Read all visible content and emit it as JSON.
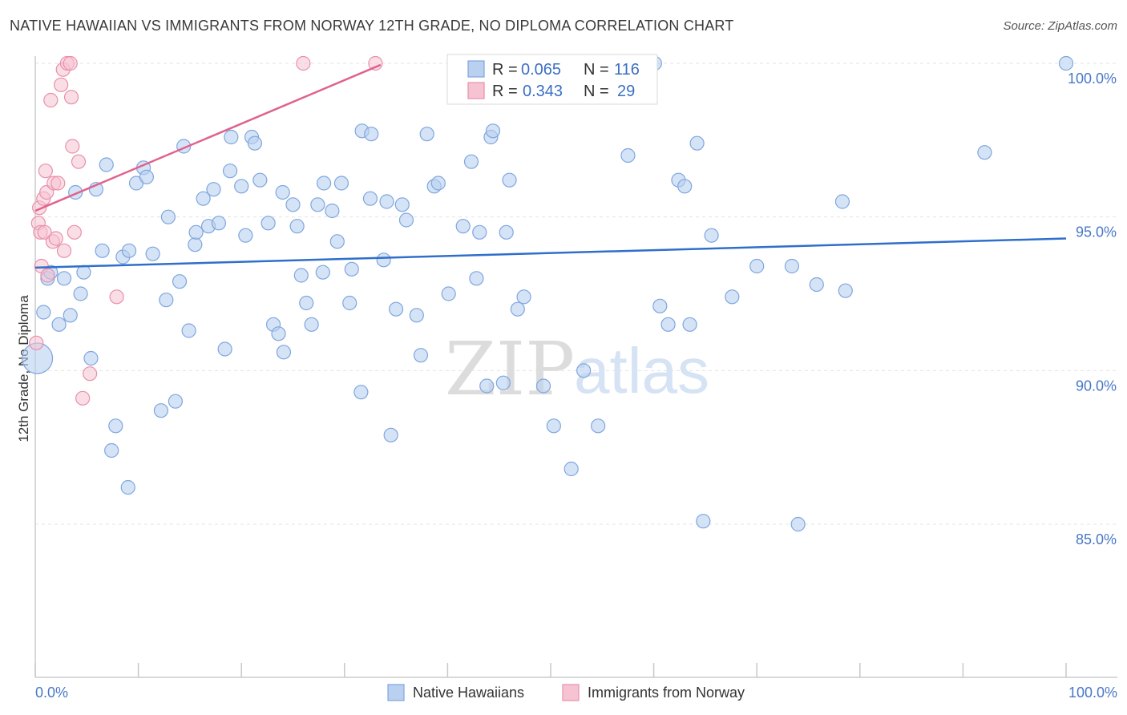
{
  "header": {
    "title": "NATIVE HAWAIIAN VS IMMIGRANTS FROM NORWAY 12TH GRADE, NO DIPLOMA CORRELATION CHART",
    "source": "Source: ZipAtlas.com"
  },
  "watermark": {
    "zip": "ZIP",
    "atlas": "atlas"
  },
  "legend": {
    "r_label": "R =",
    "n_label": "N =",
    "entries": [
      {
        "r": "0.065",
        "n": "116"
      },
      {
        "r": "0.343",
        "n": "29"
      }
    ]
  },
  "colors": {
    "blue_fill": "#b9d0f0",
    "blue_stroke": "#7fa6de",
    "blue_line": "#2f6fcb",
    "pink_fill": "#f6c3d2",
    "pink_stroke": "#e98fab",
    "pink_line": "#e0628c",
    "tick_text": "#4a78c8",
    "grid": "#e3e3e3"
  },
  "chart_data": {
    "type": "scatter",
    "title": "NATIVE HAWAIIAN VS IMMIGRANTS FROM NORWAY 12TH GRADE, NO DIPLOMA CORRELATION CHART",
    "xlabel": "",
    "ylabel": "12th Grade, No Diploma",
    "xlim": [
      0,
      100
    ],
    "ylim": [
      80.5,
      100.5
    ],
    "x_tick_labels": [
      "0.0%",
      "100.0%"
    ],
    "y_ticks": [
      100,
      95,
      90,
      85
    ],
    "y_tick_labels": [
      "100.0%",
      "95.0%",
      "90.0%",
      "85.0%"
    ],
    "grid": true,
    "legend_position": "top-center",
    "series": [
      {
        "name": "Native Hawaiians",
        "color": "#b9d0f0",
        "trend": {
          "x": [
            0,
            100
          ],
          "y": [
            93.35,
            94.3
          ]
        },
        "points": [
          [
            0.2,
            90.4
          ],
          [
            0.8,
            91.9
          ],
          [
            1.2,
            93.0
          ],
          [
            1.5,
            93.2
          ],
          [
            2.3,
            91.5
          ],
          [
            2.8,
            93.0
          ],
          [
            3.4,
            91.8
          ],
          [
            3.9,
            95.8
          ],
          [
            4.4,
            92.5
          ],
          [
            4.7,
            93.2
          ],
          [
            5.4,
            90.4
          ],
          [
            5.9,
            95.9
          ],
          [
            6.5,
            93.9
          ],
          [
            6.9,
            96.7
          ],
          [
            7.8,
            88.2
          ],
          [
            7.4,
            87.4
          ],
          [
            8.5,
            93.7
          ],
          [
            9.0,
            86.2
          ],
          [
            9.1,
            93.9
          ],
          [
            9.8,
            96.1
          ],
          [
            10.5,
            96.6
          ],
          [
            10.8,
            96.3
          ],
          [
            11.4,
            93.8
          ],
          [
            12.2,
            88.7
          ],
          [
            12.7,
            92.3
          ],
          [
            12.9,
            95.0
          ],
          [
            13.6,
            89.0
          ],
          [
            14.0,
            92.9
          ],
          [
            14.4,
            97.3
          ],
          [
            14.9,
            91.3
          ],
          [
            15.5,
            94.1
          ],
          [
            15.6,
            94.5
          ],
          [
            16.3,
            95.6
          ],
          [
            16.8,
            94.7
          ],
          [
            17.3,
            95.9
          ],
          [
            17.8,
            94.8
          ],
          [
            18.4,
            90.7
          ],
          [
            18.9,
            96.5
          ],
          [
            19.0,
            97.6
          ],
          [
            20.0,
            96.0
          ],
          [
            20.4,
            94.4
          ],
          [
            21.0,
            97.6
          ],
          [
            21.3,
            97.4
          ],
          [
            21.8,
            96.2
          ],
          [
            22.6,
            94.8
          ],
          [
            23.1,
            91.5
          ],
          [
            23.6,
            91.2
          ],
          [
            24.0,
            95.8
          ],
          [
            24.1,
            90.6
          ],
          [
            25.0,
            95.4
          ],
          [
            25.4,
            94.7
          ],
          [
            25.8,
            93.1
          ],
          [
            26.3,
            92.2
          ],
          [
            26.8,
            91.5
          ],
          [
            27.4,
            95.4
          ],
          [
            27.9,
            93.2
          ],
          [
            28.0,
            96.1
          ],
          [
            28.8,
            95.2
          ],
          [
            29.3,
            94.2
          ],
          [
            29.7,
            96.1
          ],
          [
            30.5,
            92.2
          ],
          [
            30.7,
            93.3
          ],
          [
            31.6,
            89.3
          ],
          [
            31.7,
            97.8
          ],
          [
            32.6,
            97.7
          ],
          [
            32.5,
            95.6
          ],
          [
            33.8,
            93.6
          ],
          [
            34.1,
            95.5
          ],
          [
            34.5,
            87.9
          ],
          [
            35.0,
            92.0
          ],
          [
            35.6,
            95.4
          ],
          [
            36.0,
            94.9
          ],
          [
            37.0,
            91.8
          ],
          [
            37.4,
            90.5
          ],
          [
            38.0,
            97.7
          ],
          [
            38.7,
            96.0
          ],
          [
            39.1,
            96.1
          ],
          [
            40.1,
            92.5
          ],
          [
            41.0,
            100.0
          ],
          [
            41.5,
            94.7
          ],
          [
            42.3,
            96.8
          ],
          [
            42.8,
            93.0
          ],
          [
            43.1,
            94.5
          ],
          [
            43.8,
            89.5
          ],
          [
            44.2,
            97.6
          ],
          [
            44.4,
            97.8
          ],
          [
            45.4,
            89.6
          ],
          [
            45.7,
            94.5
          ],
          [
            46.0,
            96.2
          ],
          [
            46.8,
            92.0
          ],
          [
            47.4,
            92.4
          ],
          [
            49.3,
            89.5
          ],
          [
            50.3,
            88.2
          ],
          [
            52.0,
            86.8
          ],
          [
            53.2,
            90.0
          ],
          [
            54.6,
            88.2
          ],
          [
            57.5,
            97.0
          ],
          [
            59.6,
            100.0
          ],
          [
            60.1,
            100.0
          ],
          [
            60.6,
            92.1
          ],
          [
            61.4,
            91.5
          ],
          [
            62.4,
            96.2
          ],
          [
            63.0,
            96.0
          ],
          [
            63.5,
            91.5
          ],
          [
            64.2,
            97.4
          ],
          [
            64.8,
            85.1
          ],
          [
            65.6,
            94.4
          ],
          [
            67.6,
            92.4
          ],
          [
            70.0,
            93.4
          ],
          [
            73.4,
            93.4
          ],
          [
            74.0,
            85.0
          ],
          [
            75.8,
            92.8
          ],
          [
            78.3,
            95.5
          ],
          [
            78.6,
            92.6
          ],
          [
            92.1,
            97.1
          ],
          [
            100.0,
            100.0
          ]
        ]
      },
      {
        "name": "Immigrants from Norway",
        "color": "#f6c3d2",
        "trend": {
          "x": [
            0,
            33.5
          ],
          "y": [
            95.2,
            99.95
          ]
        },
        "points": [
          [
            0.1,
            90.9
          ],
          [
            0.3,
            94.8
          ],
          [
            0.4,
            95.3
          ],
          [
            0.5,
            94.5
          ],
          [
            0.6,
            93.4
          ],
          [
            0.8,
            95.6
          ],
          [
            0.9,
            94.5
          ],
          [
            1.0,
            96.5
          ],
          [
            1.1,
            95.8
          ],
          [
            1.2,
            93.1
          ],
          [
            1.5,
            98.8
          ],
          [
            1.7,
            94.2
          ],
          [
            1.8,
            96.1
          ],
          [
            2.0,
            94.3
          ],
          [
            2.2,
            96.1
          ],
          [
            2.5,
            99.3
          ],
          [
            2.7,
            99.8
          ],
          [
            2.8,
            93.9
          ],
          [
            3.1,
            100.0
          ],
          [
            3.4,
            100.0
          ],
          [
            3.5,
            98.9
          ],
          [
            3.6,
            97.3
          ],
          [
            3.8,
            94.5
          ],
          [
            4.2,
            96.8
          ],
          [
            4.6,
            89.1
          ],
          [
            5.3,
            89.9
          ],
          [
            7.9,
            92.4
          ],
          [
            26.0,
            100.0
          ],
          [
            33.0,
            100.0
          ]
        ]
      }
    ]
  },
  "bottom_legend": [
    "Native Hawaiians",
    "Immigrants from Norway"
  ]
}
